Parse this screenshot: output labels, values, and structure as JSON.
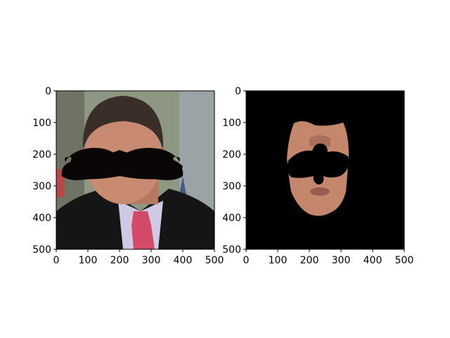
{
  "figure": {
    "background": "#ffffff"
  },
  "chart_data": [
    {
      "type": "image",
      "panel": "left",
      "title": "",
      "xlabel": "",
      "ylabel": "",
      "xlim": [
        0,
        500
      ],
      "ylim": [
        500,
        0
      ],
      "xticks": [
        0,
        100,
        200,
        300,
        400,
        500
      ],
      "yticks": [
        0,
        100,
        200,
        300,
        400,
        500
      ],
      "image_content": "photo of a man in a dark suit with a pink tie, a black handlebar mustache overlaid on his face",
      "colors": {
        "mustache": "#0a0606",
        "suit": "#151515",
        "tie": "#d24a68",
        "skin": "#c88a70",
        "hair": "#3a2e28",
        "background": "#8e9684"
      }
    },
    {
      "type": "image",
      "panel": "right",
      "title": "",
      "xlabel": "",
      "ylabel": "",
      "xlim": [
        0,
        500
      ],
      "ylim": [
        500,
        0
      ],
      "xticks": [
        0,
        100,
        200,
        300,
        400,
        500
      ],
      "yticks": [
        0,
        100,
        200,
        300,
        400,
        500
      ],
      "image_content": "masked face region on black background with a black mustache-shaped cutout",
      "colors": {
        "background": "#000000",
        "skin": "#c4876c",
        "cutout": "#000000"
      }
    }
  ]
}
